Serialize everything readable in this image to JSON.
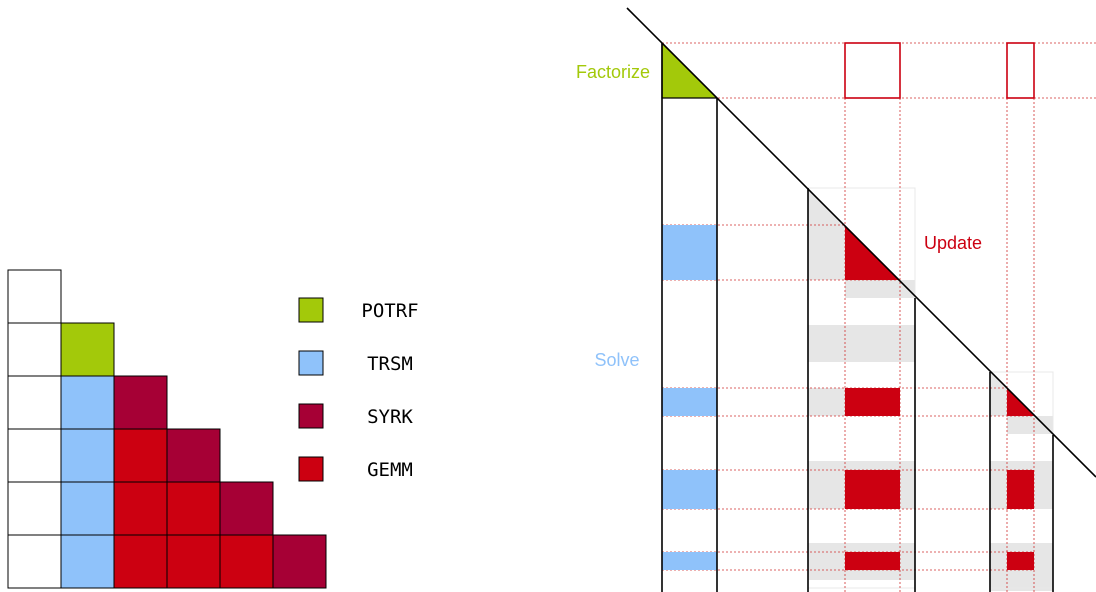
{
  "colors": {
    "potrf": "#a3c90a",
    "trsm": "#8fc2fa",
    "syrk": "#a60035",
    "gemm": "#cc0011",
    "shade": "#e6e6e6",
    "guide": "#d03030",
    "update_label": "#cc0011"
  },
  "legend": [
    {
      "key": "potrf",
      "label": "POTRF"
    },
    {
      "key": "trsm",
      "label": "TRSM"
    },
    {
      "key": "syrk",
      "label": "SYRK"
    },
    {
      "key": "gemm",
      "label": "GEMM"
    }
  ],
  "tile_grid": {
    "rows": [
      [
        "empty"
      ],
      [
        "empty",
        "potrf"
      ],
      [
        "empty",
        "trsm",
        "syrk"
      ],
      [
        "empty",
        "trsm",
        "gemm",
        "syrk"
      ],
      [
        "empty",
        "trsm",
        "gemm",
        "gemm",
        "syrk"
      ],
      [
        "empty",
        "trsm",
        "gemm",
        "gemm",
        "gemm",
        "syrk"
      ]
    ]
  },
  "labels": {
    "factorize": "Factorize",
    "solve": "Solve",
    "update": "Update"
  }
}
